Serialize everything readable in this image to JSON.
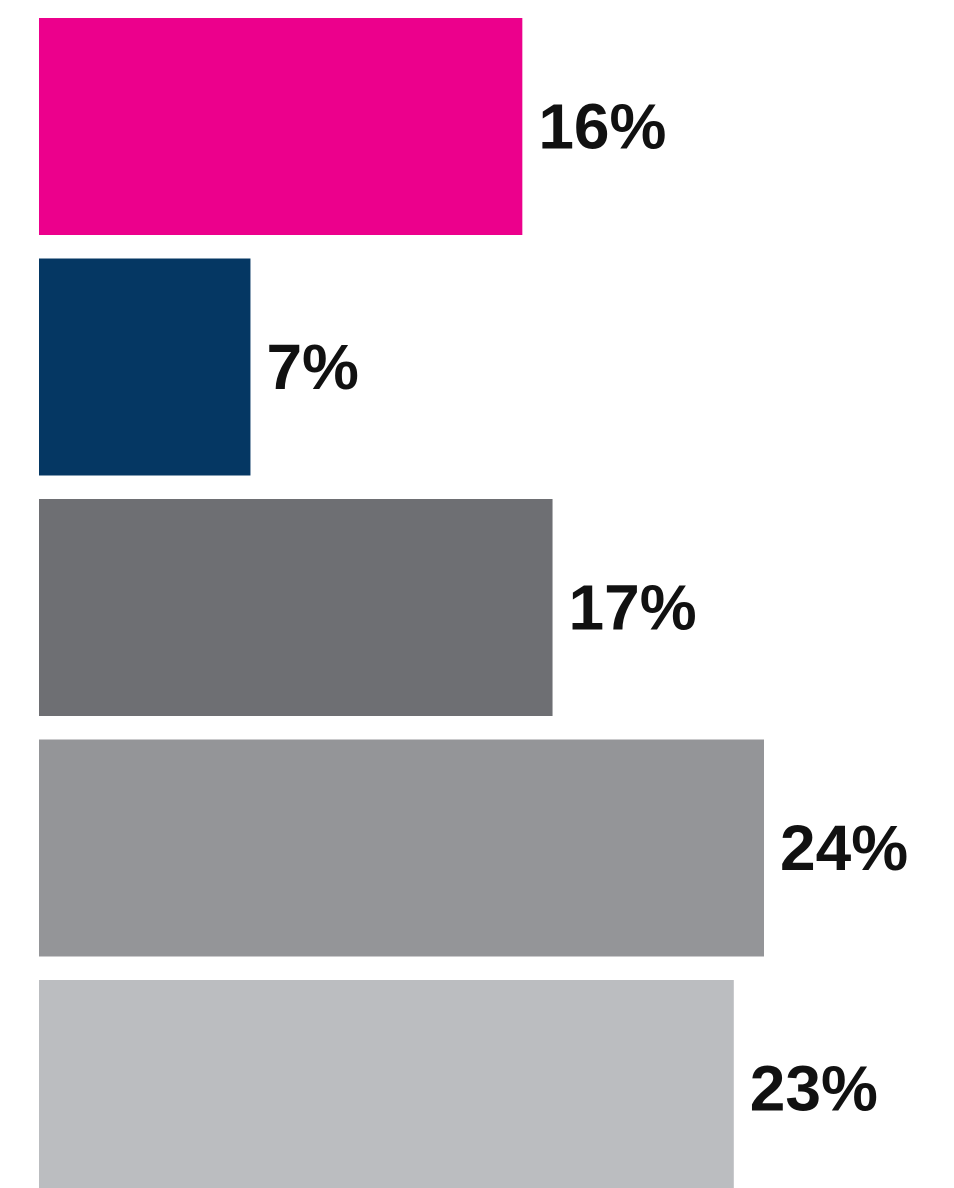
{
  "chart_data": {
    "type": "bar",
    "orientation": "horizontal",
    "categories": [
      "",
      "",
      "",
      "",
      ""
    ],
    "values": [
      16,
      7,
      17,
      24,
      23
    ],
    "labels": [
      "16%",
      "7%",
      "17%",
      "24%",
      "23%"
    ],
    "colors": [
      "#EC008C",
      "#053763",
      "#6E6F73",
      "#949598",
      "#BBBDC0"
    ],
    "title": "",
    "xlabel": "",
    "ylabel": "",
    "xlim": [
      0,
      24
    ],
    "grid": false,
    "legend": "none"
  }
}
